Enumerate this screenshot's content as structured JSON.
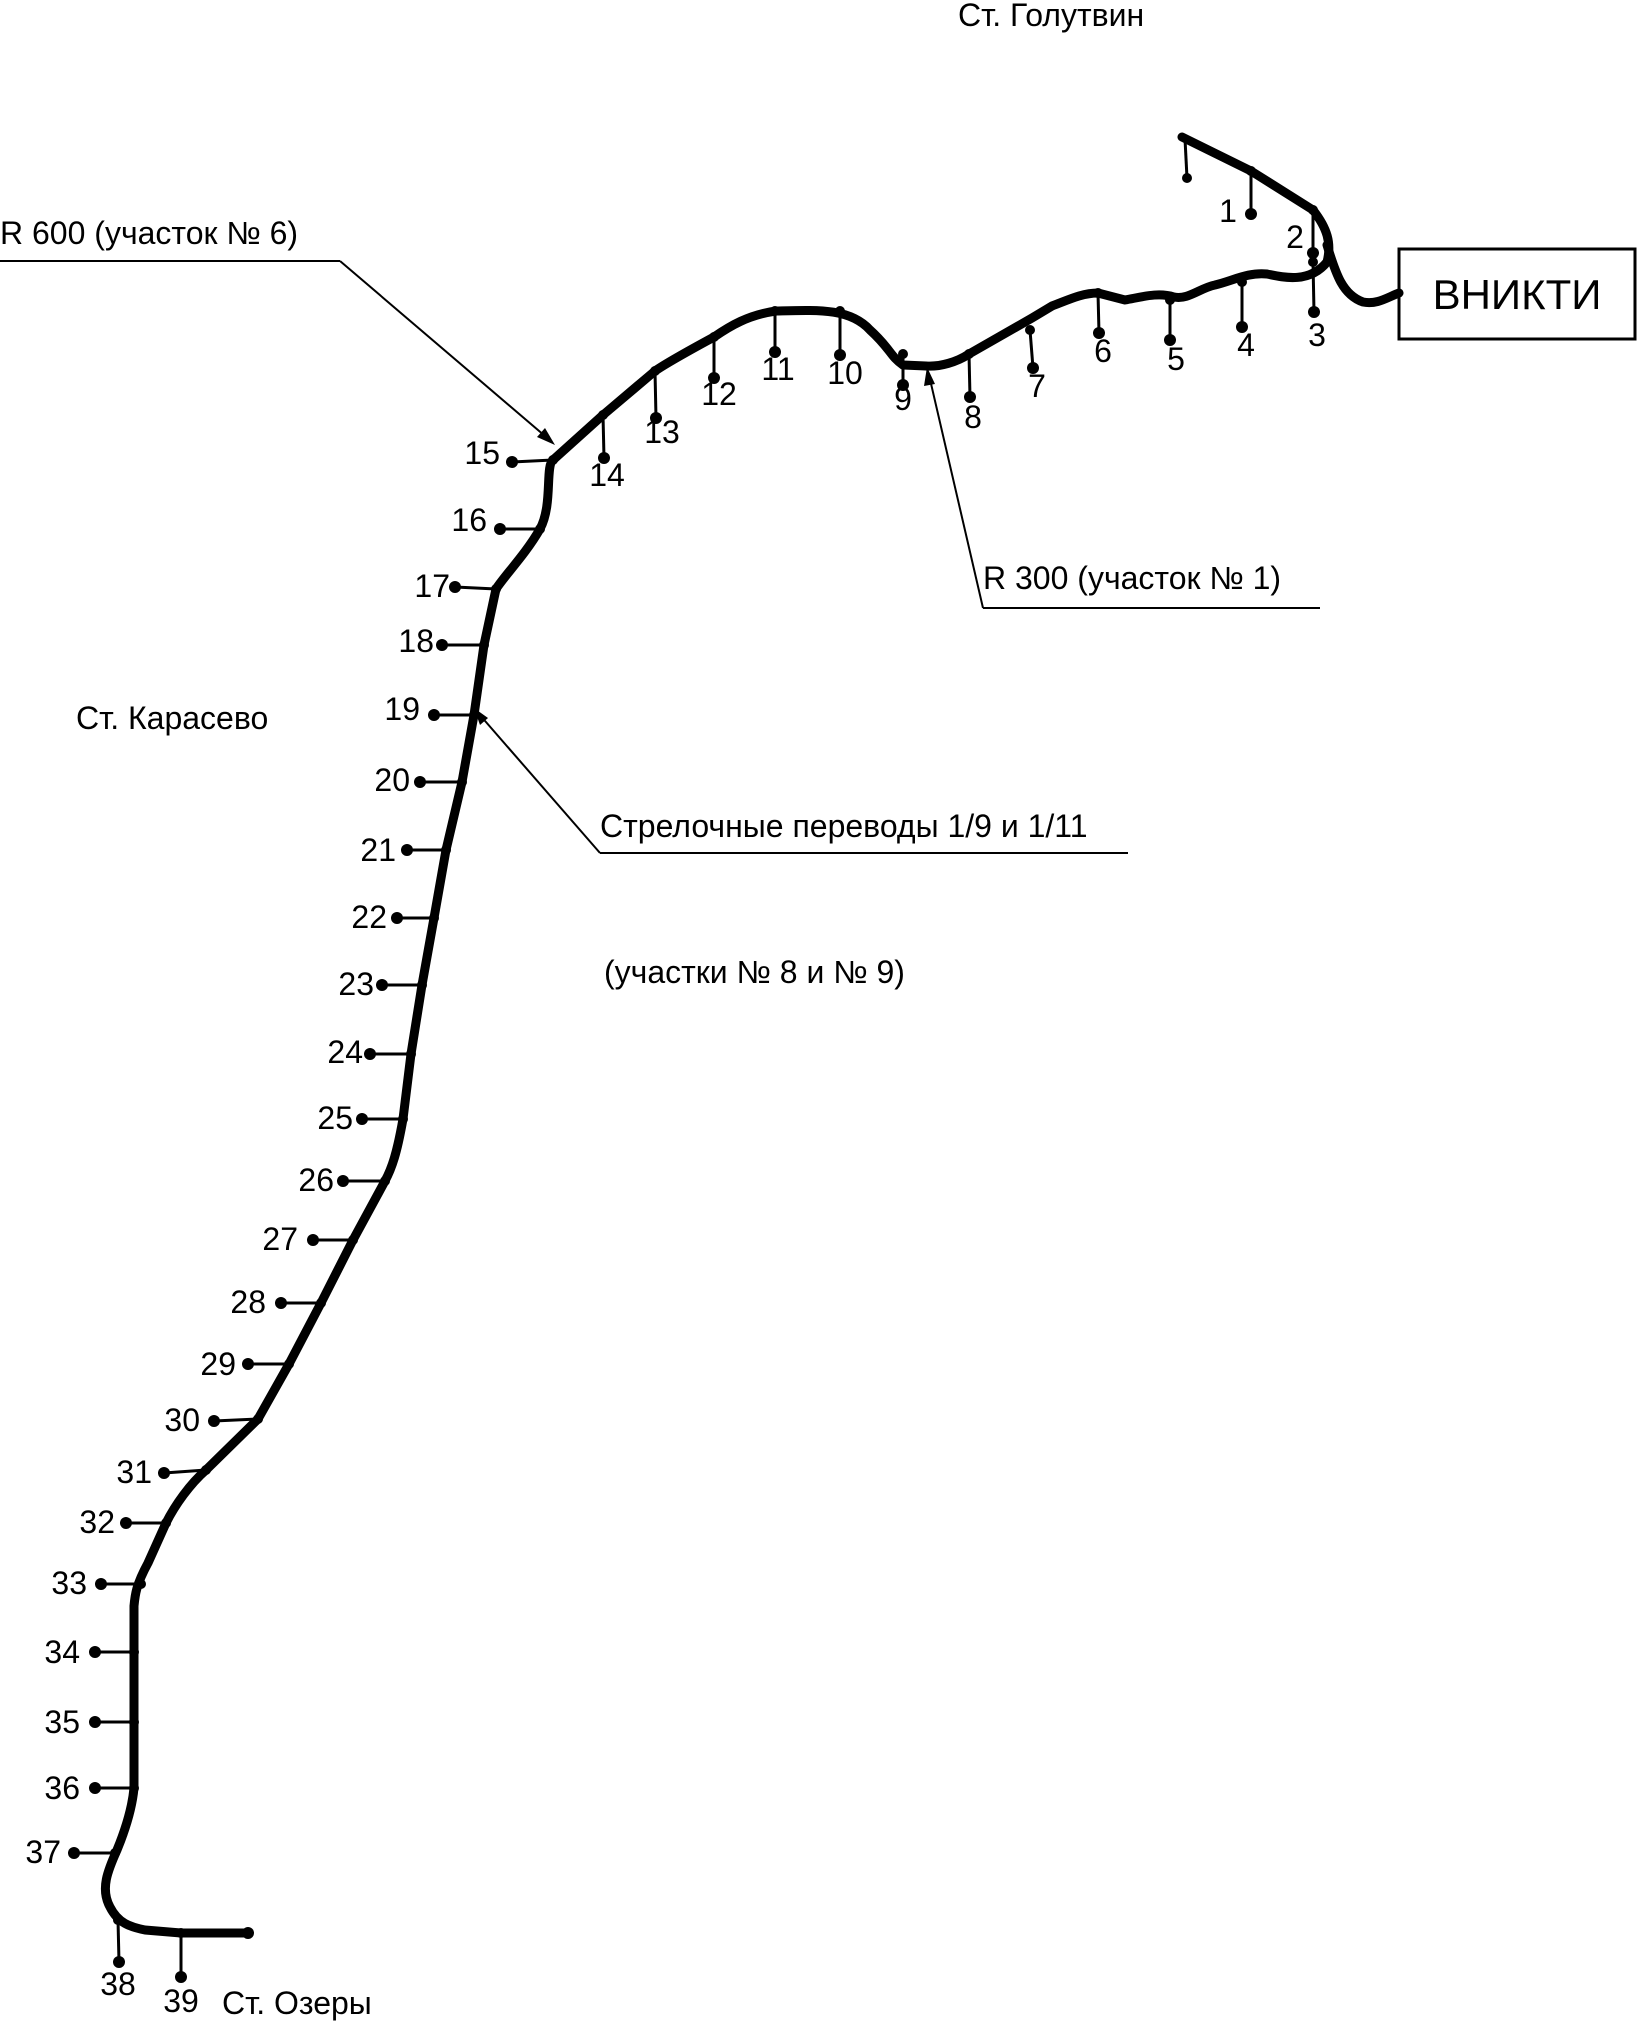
{
  "labels": {
    "station_golutvin": "Ст. Голутвин",
    "station_karasevo": "Ст. Карасево",
    "station_ozery": "Ст. Озеры",
    "institute_box": "ВНИКТИ",
    "radius_600": "R 600 (участок № 6)",
    "radius_300": "R 300 (участок № 1)",
    "switches": "Стрелочные переводы 1/9 и 1/11",
    "sections": "(участки № 8 и № 9)"
  },
  "points": [
    "1",
    "2",
    "3",
    "4",
    "5",
    "6",
    "7",
    "8",
    "9",
    "10",
    "11",
    "12",
    "13",
    "14",
    "15",
    "16",
    "17",
    "18",
    "19",
    "20",
    "21",
    "22",
    "23",
    "24",
    "25",
    "26",
    "27",
    "28",
    "29",
    "30",
    "31",
    "32",
    "33",
    "34",
    "35",
    "36",
    "37",
    "38",
    "39"
  ],
  "colors": {
    "line": "#000000",
    "background": "#ffffff"
  }
}
